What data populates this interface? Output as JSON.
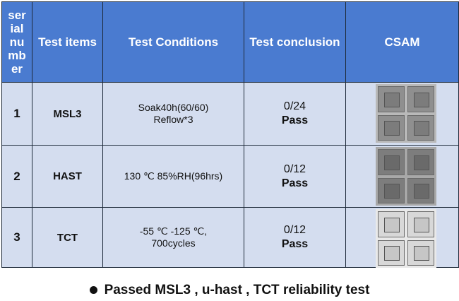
{
  "headers": {
    "serial": "ser ial nu mb er",
    "items": "Test items",
    "conditions": "Test Conditions",
    "conclusion": "Test conclusion",
    "csam": "CSAM"
  },
  "rows": [
    {
      "serial": "1",
      "item": "MSL3",
      "conditions": [
        "Soak40h(60/60)",
        "Reflow*3"
      ],
      "ratio": "0/24",
      "result": "Pass"
    },
    {
      "serial": "2",
      "item": "HAST",
      "conditions": [
        "130 ℃ 85%RH(96hrs)"
      ],
      "ratio": "0/12",
      "result": "Pass"
    },
    {
      "serial": "3",
      "item": "TCT",
      "conditions": [
        "-55 ℃ -125 ℃,",
        "700cycles"
      ],
      "ratio": "0/12",
      "result": "Pass"
    }
  ],
  "footer": "Passed MSL3 , u-hast , TCT reliability test",
  "colors": {
    "header": "#4a7bd0",
    "row": "#d4ddef"
  }
}
